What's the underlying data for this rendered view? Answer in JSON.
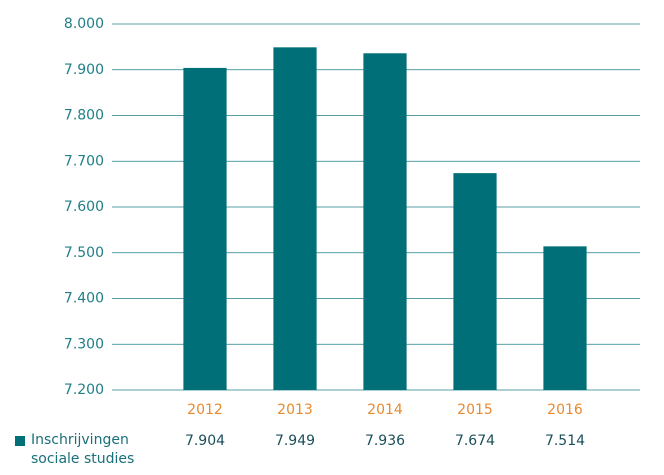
{
  "chart_data": {
    "type": "bar",
    "categories": [
      "2012",
      "2013",
      "2014",
      "2015",
      "2016"
    ],
    "series": [
      {
        "name": "Inschrijvingen sociale studies",
        "color": "#006f78",
        "values": [
          7904,
          7949,
          7936,
          7674,
          7514
        ],
        "value_labels": [
          "7.904",
          "7.949",
          "7.936",
          "7.674",
          "7.514"
        ]
      }
    ],
    "ylim": [
      7200,
      8000
    ],
    "yticks": [
      {
        "value": 7200,
        "label": "7.200"
      },
      {
        "value": 7300,
        "label": "7.300"
      },
      {
        "value": 7400,
        "label": "7.400"
      },
      {
        "value": 7500,
        "label": "7.500"
      },
      {
        "value": 7600,
        "label": "7.600"
      },
      {
        "value": 7700,
        "label": "7.700"
      },
      {
        "value": 7800,
        "label": "7.800"
      },
      {
        "value": 7900,
        "label": "7.900"
      },
      {
        "value": 8000,
        "label": "8.000"
      }
    ],
    "grid": true
  }
}
